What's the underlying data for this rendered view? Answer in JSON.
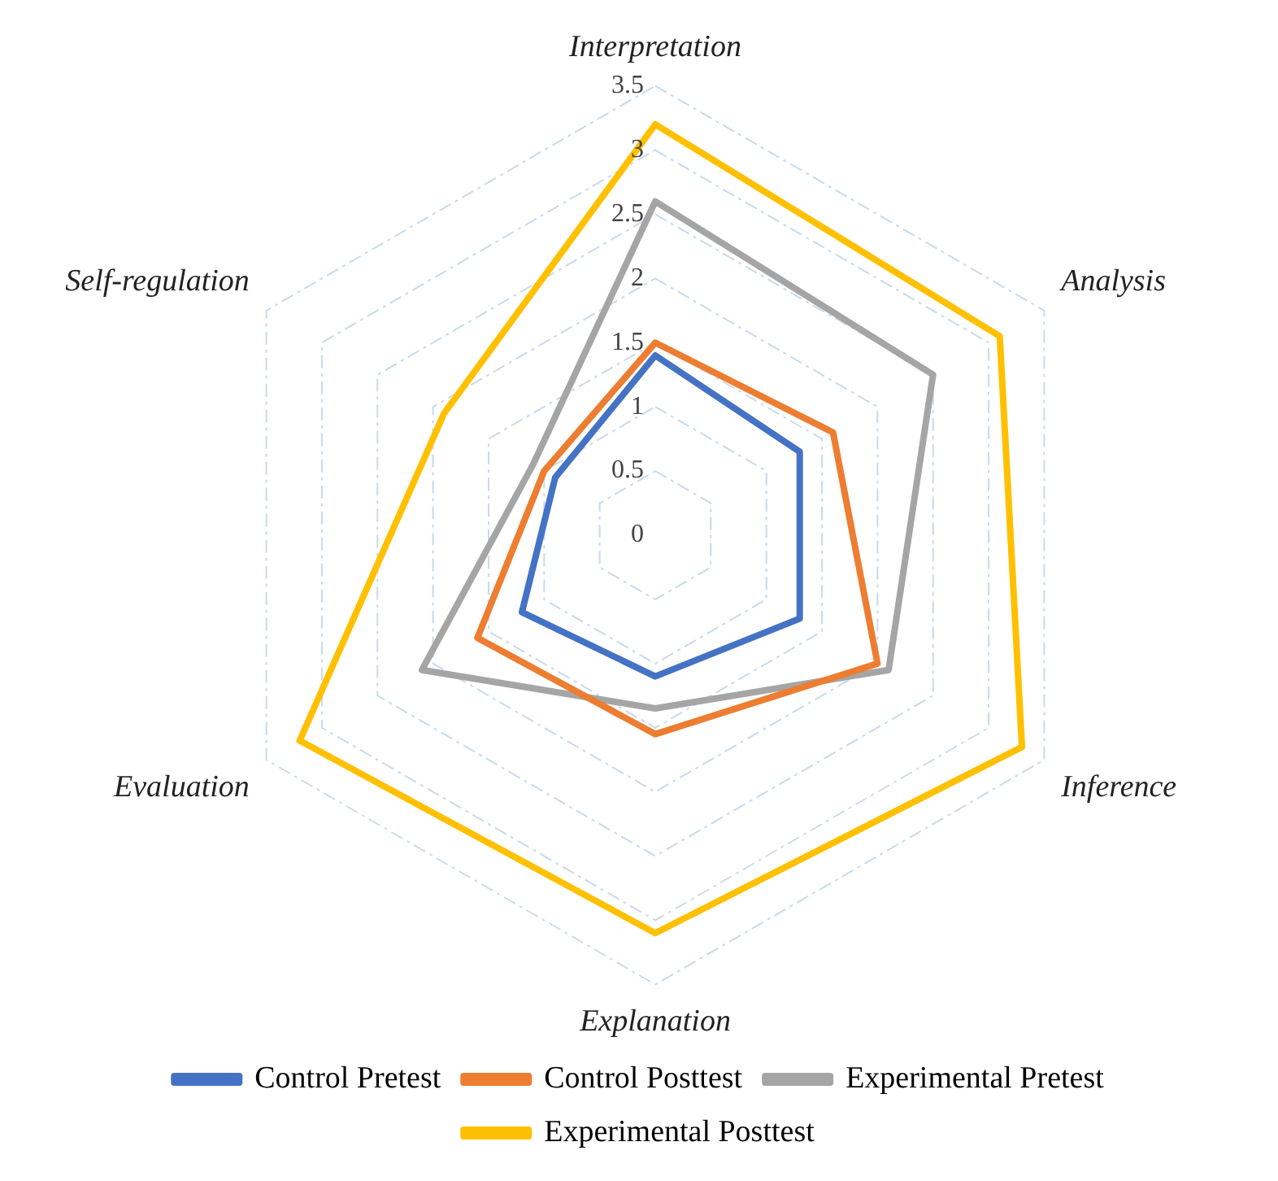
{
  "chart_data": {
    "type": "radar",
    "categories": [
      "Interpretation",
      "Analysis",
      "Inference",
      "Explanation",
      "Evaluation",
      "Self-regulation"
    ],
    "ylim": [
      0,
      3.5
    ],
    "yticks": [
      0,
      0.5,
      1,
      1.5,
      2,
      2.5,
      3,
      3.5
    ],
    "grid": true,
    "legend": "bottom",
    "marker": "none",
    "line_style": "solid",
    "series": [
      {
        "name": "Control Pretest",
        "color": "#4472c4",
        "values": [
          1.4,
          1.3,
          1.3,
          1.1,
          1.2,
          0.9
        ]
      },
      {
        "name": "Control Posttest",
        "color": "#ed7d31",
        "values": [
          1.5,
          1.6,
          2.0,
          1.55,
          1.6,
          1.0
        ]
      },
      {
        "name": "Experimental Pretest",
        "color": "#a5a5a5",
        "values": [
          2.6,
          2.5,
          2.1,
          1.35,
          2.1,
          1.1
        ]
      },
      {
        "name": "Experimental Posttest",
        "color": "#ffc000",
        "values": [
          3.2,
          3.1,
          3.3,
          3.1,
          3.2,
          1.9
        ]
      }
    ]
  }
}
